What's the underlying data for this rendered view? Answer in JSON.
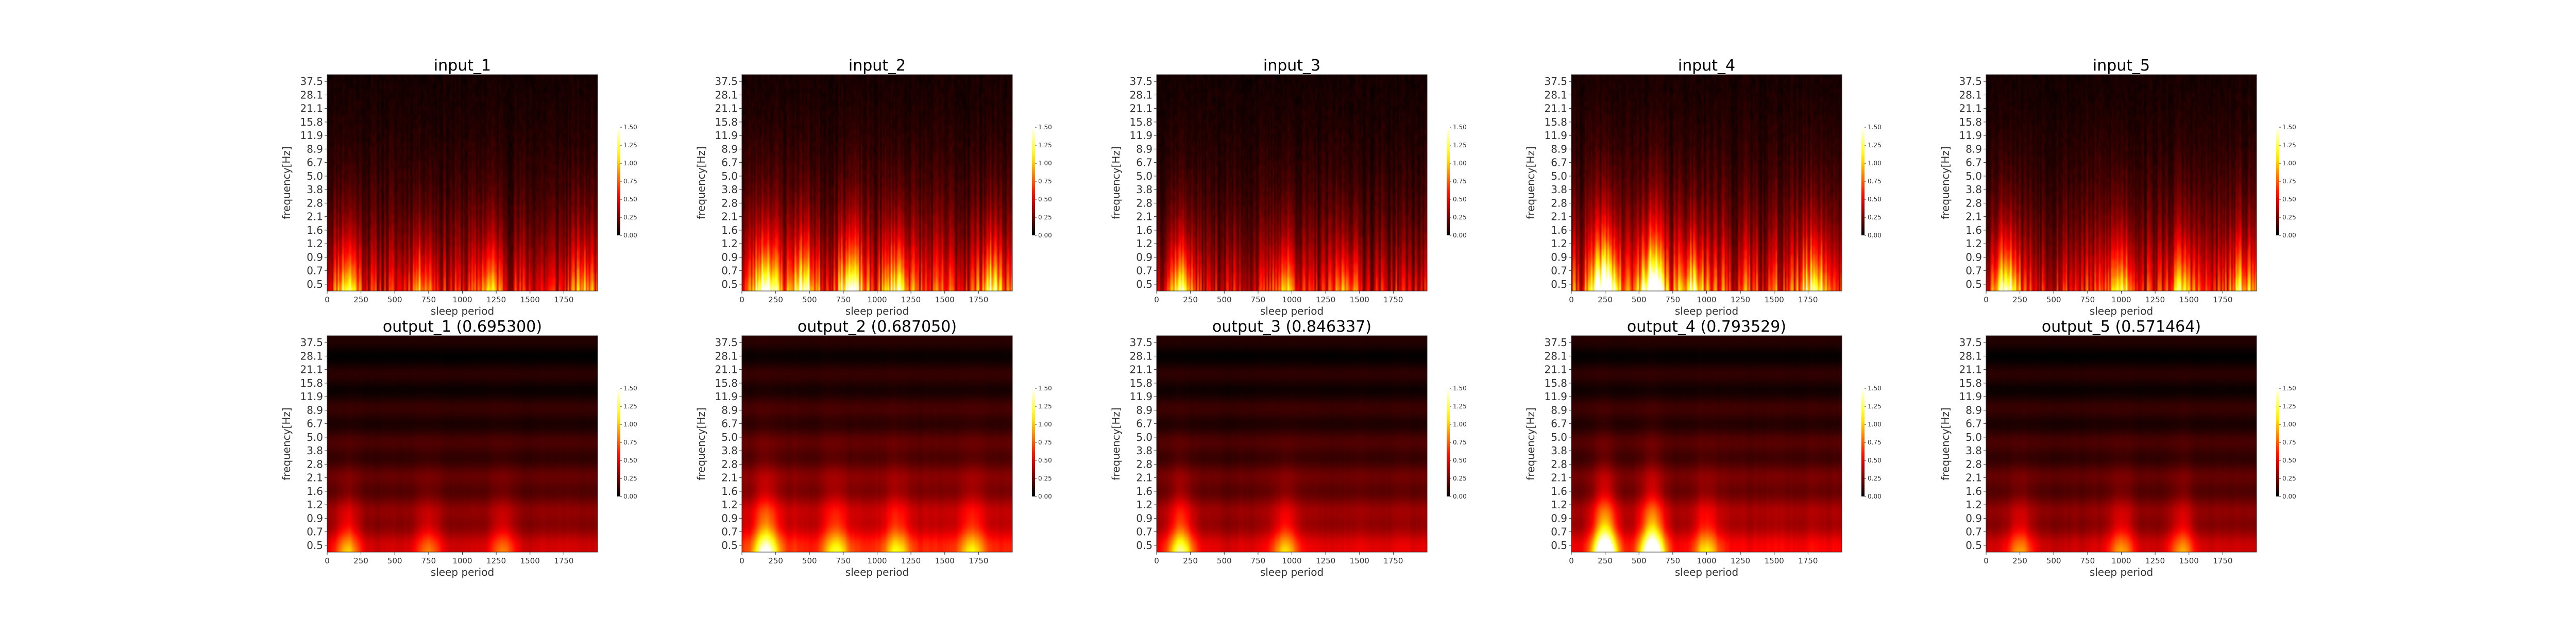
{
  "chart_data": {
    "type": "heatmap",
    "layout": "2 rows x 5 columns of spectrogram heatmaps",
    "colormap": "hot",
    "xlabel": "sleep period",
    "ylabel": "frequency[Hz]",
    "xlim": [
      0,
      2000
    ],
    "x_ticks": [
      0,
      250,
      500,
      750,
      1000,
      1250,
      1500,
      1750
    ],
    "y_ticks": [
      "0.5",
      "0.7",
      "0.9",
      "1.2",
      "1.6",
      "2.1",
      "2.8",
      "3.8",
      "5.0",
      "6.7",
      "8.9",
      "11.9",
      "15.8",
      "21.1",
      "28.1",
      "37.5"
    ],
    "colorbar": {
      "min": 0.0,
      "max": 1.5,
      "ticks": [
        "0.00",
        "0.25",
        "0.50",
        "0.75",
        "1.00",
        "1.25",
        "1.50"
      ]
    },
    "panels": [
      {
        "title": "input_1",
        "kind": "input",
        "seed": 11,
        "base_level": 0.55,
        "hotspots": [
          [
            150,
            0.8
          ],
          [
            700,
            0.5
          ],
          [
            1200,
            0.55
          ],
          [
            1900,
            0.5
          ]
        ]
      },
      {
        "title": "input_2",
        "kind": "input",
        "seed": 23,
        "base_level": 0.65,
        "hotspots": [
          [
            180,
            1.2
          ],
          [
            450,
            0.9
          ],
          [
            800,
            1.0
          ],
          [
            1150,
            0.8
          ],
          [
            1850,
            0.7
          ]
        ]
      },
      {
        "title": "input_3",
        "kind": "input",
        "seed": 37,
        "base_level": 0.5,
        "hotspots": [
          [
            180,
            0.9
          ],
          [
            950,
            0.6
          ],
          [
            1400,
            0.5
          ]
        ]
      },
      {
        "title": "input_4",
        "kind": "input",
        "seed": 41,
        "base_level": 0.7,
        "hotspots": [
          [
            250,
            1.5
          ],
          [
            600,
            1.4
          ],
          [
            900,
            0.8
          ],
          [
            1800,
            0.8
          ]
        ]
      },
      {
        "title": "input_5",
        "kind": "input",
        "seed": 53,
        "base_level": 0.6,
        "hotspots": [
          [
            150,
            1.1
          ],
          [
            1000,
            0.7
          ],
          [
            1450,
            0.6
          ],
          [
            1900,
            0.6
          ]
        ]
      },
      {
        "title": "output_1 (0.695300)",
        "kind": "output",
        "seed": 61,
        "base_level": 0.45,
        "hotspots": [
          [
            150,
            0.6
          ],
          [
            750,
            0.4
          ],
          [
            1300,
            0.4
          ]
        ]
      },
      {
        "title": "output_2 (0.687050)",
        "kind": "output",
        "seed": 73,
        "base_level": 0.65,
        "hotspots": [
          [
            180,
            1.0
          ],
          [
            700,
            0.6
          ],
          [
            1150,
            0.55
          ],
          [
            1700,
            0.5
          ]
        ]
      },
      {
        "title": "output_3 (0.846337)",
        "kind": "output",
        "seed": 83,
        "base_level": 0.5,
        "hotspots": [
          [
            180,
            0.9
          ],
          [
            950,
            0.6
          ]
        ]
      },
      {
        "title": "output_4 (0.793529)",
        "kind": "output",
        "seed": 97,
        "base_level": 0.55,
        "hotspots": [
          [
            250,
            1.6
          ],
          [
            600,
            1.5
          ],
          [
            1000,
            0.6
          ]
        ]
      },
      {
        "title": "output_5 (0.571464)",
        "kind": "output",
        "seed": 101,
        "base_level": 0.45,
        "hotspots": [
          [
            250,
            0.5
          ],
          [
            1000,
            0.5
          ],
          [
            1450,
            0.5
          ]
        ]
      }
    ]
  }
}
